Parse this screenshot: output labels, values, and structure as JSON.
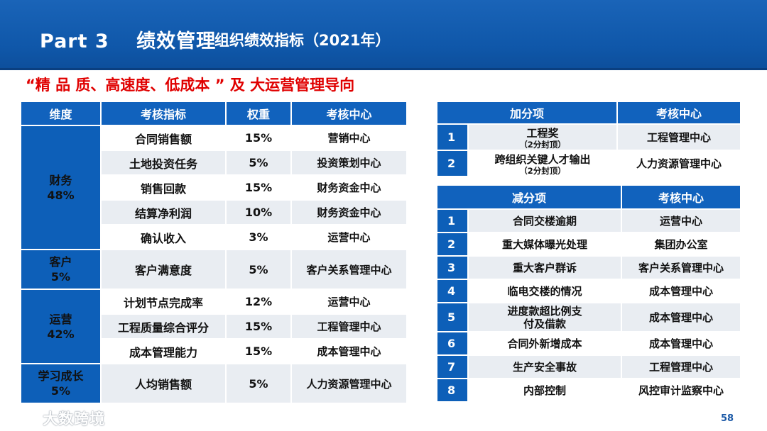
{
  "header": {
    "part": "Part 3　 绩效管理",
    "subtitle": "组织绩效指标（2021年）"
  },
  "highlight": "“精 品 质、高速度、低成本 ” 及 大运营管理导向",
  "main_table": {
    "headers": [
      "维度",
      "考核指标",
      "权重",
      "考核中心"
    ],
    "groups": [
      {
        "name": "财务",
        "pct": "48%",
        "rows": [
          [
            "合同销售额",
            "15%",
            "营销中心"
          ],
          [
            "土地投资任务",
            "5%",
            "投资策划中心"
          ],
          [
            "销售回款",
            "15%",
            "财务资金中心"
          ],
          [
            "结算净利润",
            "10%",
            "财务资金中心"
          ],
          [
            "确认收入",
            "3%",
            "运营中心"
          ]
        ]
      },
      {
        "name": "客户",
        "pct": "5%",
        "rows": [
          [
            "客户满意度",
            "5%",
            "客户关系管理中心"
          ]
        ]
      },
      {
        "name": "运营",
        "pct": "42%",
        "rows": [
          [
            "计划节点完成率",
            "12%",
            "运营中心"
          ],
          [
            "工程质量综合评分",
            "15%",
            "工程管理中心"
          ],
          [
            "成本管理能力",
            "15%",
            "成本管理中心"
          ]
        ]
      },
      {
        "name": "学习成长",
        "pct": "5%",
        "rows": [
          [
            "人均销售额",
            "5%",
            "人力资源管理中心"
          ]
        ]
      }
    ]
  },
  "bonus_table": {
    "headers": [
      "加分项",
      "考核中心"
    ],
    "rows": [
      {
        "num": "1",
        "item": "工程奖",
        "note": "（2分封顶）",
        "center": "工程管理中心"
      },
      {
        "num": "2",
        "item": "跨组织关键人才输出",
        "note": "（2分封顶）",
        "center": "人力资源管理中心"
      }
    ]
  },
  "deduct_table": {
    "headers": [
      "减分项",
      "考核中心"
    ],
    "rows": [
      {
        "num": "1",
        "item": "合同交楼逾期",
        "center": "运营中心"
      },
      {
        "num": "2",
        "item": "重大媒体曝光处理",
        "center": "集团办公室"
      },
      {
        "num": "3",
        "item": "重大客户群诉",
        "center": "客户关系管理中心"
      },
      {
        "num": "4",
        "item": "临电交楼的情况",
        "center": "成本管理中心"
      },
      {
        "num": "5",
        "item": "进度款超比例支付及借款",
        "center": "成本管理中心"
      },
      {
        "num": "6",
        "item": "合同外新增成本",
        "center": "成本管理中心"
      },
      {
        "num": "7",
        "item": "生产安全事故",
        "center": "工程管理中心"
      },
      {
        "num": "8",
        "item": "内部控制",
        "center": "风控审计监察中心"
      }
    ]
  },
  "page_number": "58",
  "watermark": "大数跨境"
}
